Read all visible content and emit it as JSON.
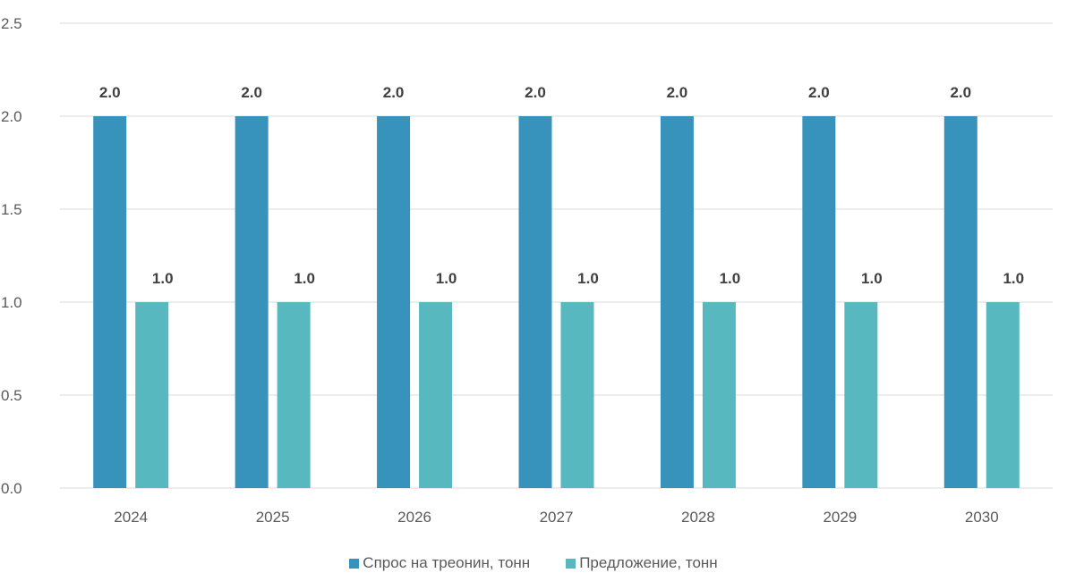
{
  "chart_data": {
    "type": "bar",
    "categories": [
      "2024",
      "2025",
      "2026",
      "2027",
      "2028",
      "2029",
      "2030"
    ],
    "series": [
      {
        "name": "Спрос на треонин, тонн",
        "values": [
          2.0,
          2.0,
          2.0,
          2.0,
          2.0,
          2.0,
          2.0
        ],
        "color": "#3793BB"
      },
      {
        "name": "Предложение, тонн",
        "values": [
          1.0,
          1.0,
          1.0,
          1.0,
          1.0,
          1.0,
          1.0
        ],
        "color": "#58B8C0"
      }
    ],
    "ylim": [
      0,
      2.5
    ],
    "yticks": [
      "0.0",
      "0.5",
      "1.0",
      "1.5",
      "2.0",
      "2.5"
    ],
    "data_labels": true,
    "grid": "horizontal",
    "legend_position": "bottom",
    "gridline_color": "#d9d9d9"
  }
}
